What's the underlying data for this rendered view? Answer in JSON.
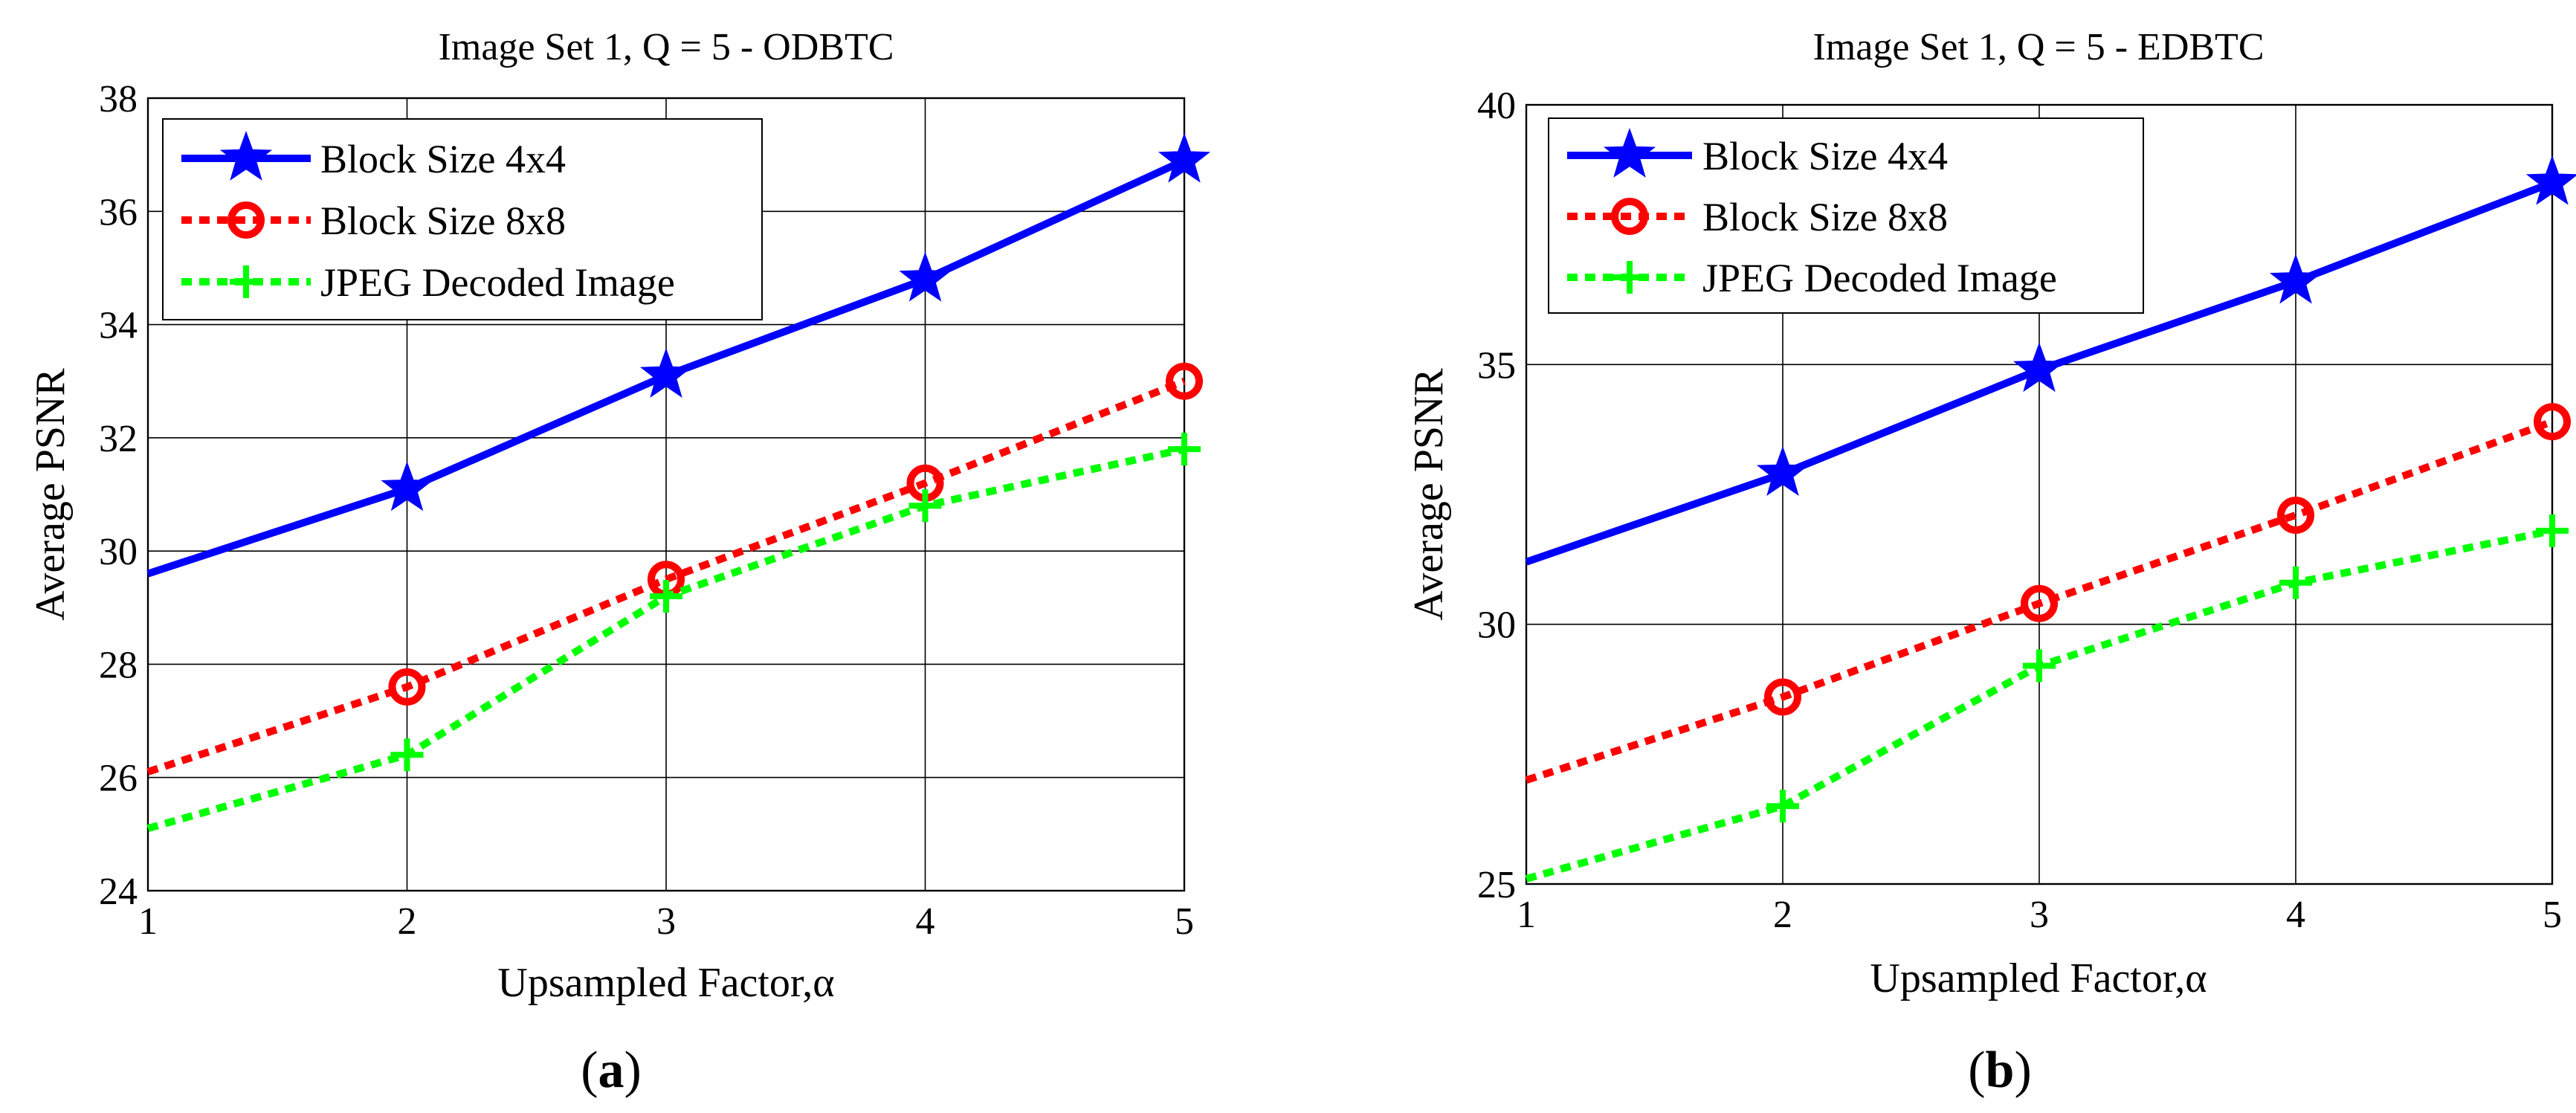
{
  "chart_data": [
    {
      "type": "line",
      "title": "Image Set 1, Q = 5 - ODBTC",
      "xlabel": "Upsampled Factor,",
      "xlabel_symbol": "α",
      "ylabel": "Average PSNR",
      "x": [
        1,
        2,
        3,
        4,
        5
      ],
      "xlim": [
        1,
        5
      ],
      "ylim": [
        24,
        38
      ],
      "xticks": [
        "1",
        "2",
        "3",
        "4",
        "5"
      ],
      "yticks": [
        "24",
        "26",
        "28",
        "30",
        "32",
        "34",
        "36",
        "38"
      ],
      "grid": true,
      "legend_position": "top-left",
      "series": [
        {
          "name": "Block Size 4x4",
          "values": [
            29.6,
            31.1,
            33.1,
            34.8,
            36.9
          ],
          "color": "#0000ff",
          "style": "solid",
          "marker": "star"
        },
        {
          "name": "Block Size 8x8",
          "values": [
            26.1,
            27.6,
            29.5,
            31.2,
            33.0
          ],
          "color": "#ff0000",
          "style": "dotted",
          "marker": "circle"
        },
        {
          "name": "JPEG Decoded Image",
          "values": [
            25.1,
            26.4,
            29.2,
            30.8,
            31.8
          ],
          "color": "#00ff00",
          "style": "dotted",
          "marker": "plus"
        }
      ]
    },
    {
      "type": "line",
      "title": "Image Set 1, Q = 5 - EDBTC",
      "xlabel": "Upsampled Factor,",
      "xlabel_symbol": "α",
      "ylabel": "Average PSNR",
      "x": [
        1,
        2,
        3,
        4,
        5
      ],
      "xlim": [
        1,
        5
      ],
      "ylim": [
        25,
        40
      ],
      "xticks": [
        "1",
        "2",
        "3",
        "4",
        "5"
      ],
      "yticks": [
        "25",
        "30",
        "35",
        "40"
      ],
      "grid": true,
      "legend_position": "top-left",
      "series": [
        {
          "name": "Block Size 4x4",
          "values": [
            31.2,
            32.9,
            34.9,
            36.6,
            38.5
          ],
          "color": "#0000ff",
          "style": "solid",
          "marker": "star"
        },
        {
          "name": "Block Size 8x8",
          "values": [
            27.0,
            28.6,
            30.4,
            32.1,
            33.9
          ],
          "color": "#ff0000",
          "style": "dotted",
          "marker": "circle"
        },
        {
          "name": "JPEG Decoded Image",
          "values": [
            25.1,
            26.5,
            29.2,
            30.8,
            31.8
          ],
          "color": "#00ff00",
          "style": "dotted",
          "marker": "plus"
        }
      ]
    }
  ],
  "panels": [
    {
      "open": "(",
      "letter": "a",
      "close": ")"
    },
    {
      "open": "(",
      "letter": "b",
      "close": ")"
    }
  ]
}
